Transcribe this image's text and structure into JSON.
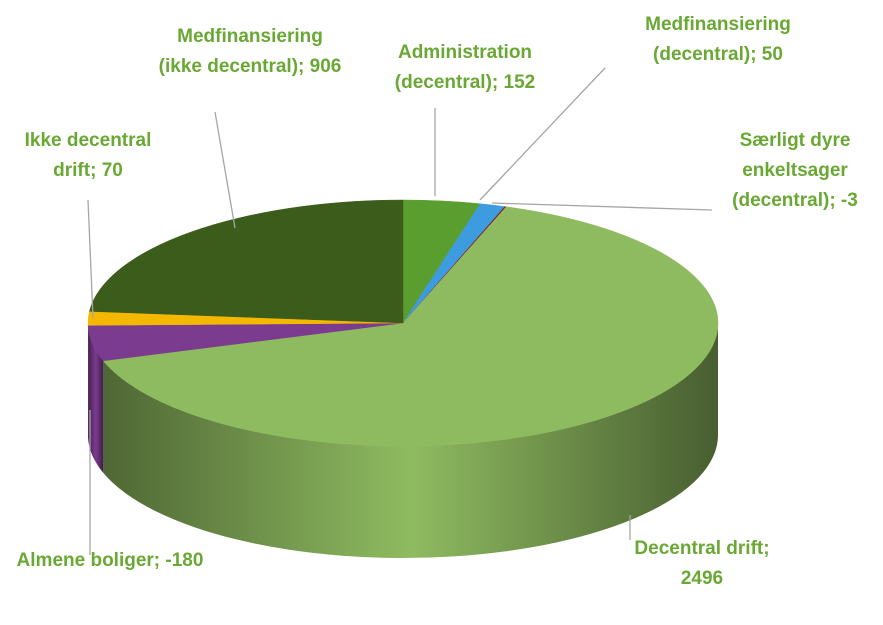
{
  "chart_data": {
    "type": "pie3d",
    "categories": [
      "Administration (decentral)",
      "Medfinansiering (decentral)",
      "Særligt dyre enkeltsager (decentral)",
      "Decentral drift",
      "Almene boliger",
      "Ikke decentral drift",
      "Medfinansiering (ikke decentral)"
    ],
    "values": [
      152,
      50,
      -3,
      2496,
      -180,
      70,
      906
    ],
    "colors": [
      "#5b9e30",
      "#3d9be0",
      "#8b1a1a",
      "#8fbb60",
      "#7b3b8f",
      "#f5b800",
      "#3c5c1b"
    ],
    "label_separator": "; ",
    "label_color": "#6aa834"
  }
}
